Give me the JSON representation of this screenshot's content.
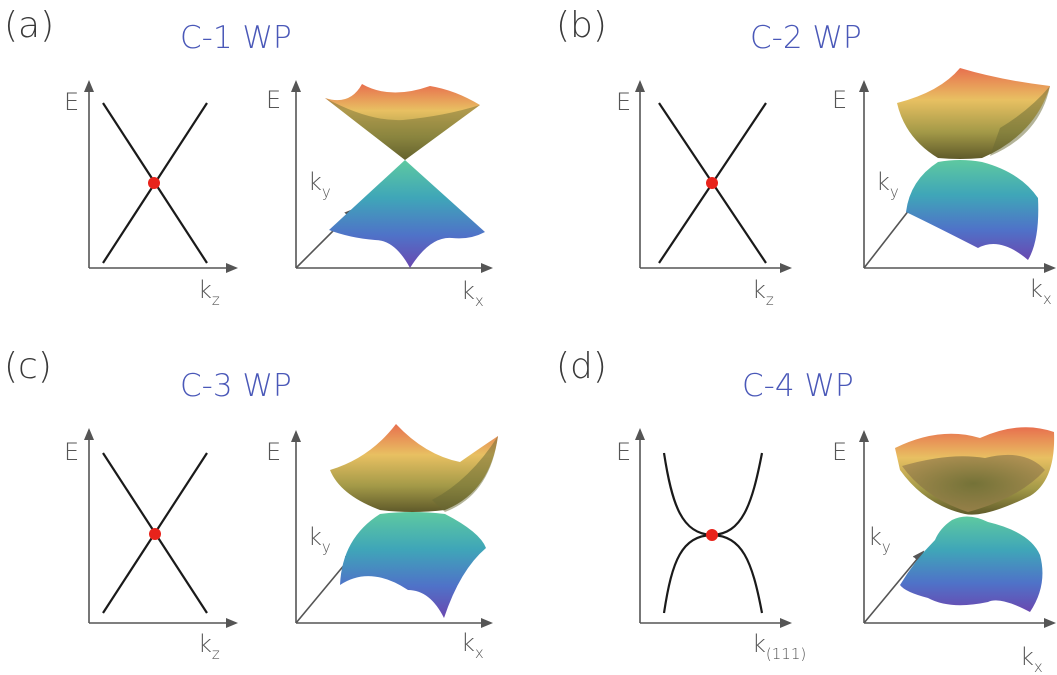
{
  "panels": [
    {
      "tag": "(a)",
      "title": "C-1 WP",
      "plot2d": {
        "ylabel": "E",
        "xlabel": "k",
        "xlabel_sub": "z",
        "dispersion": "linear"
      },
      "plot3d": {
        "ylabel": "E",
        "ky_label": "k",
        "ky_sub": "y",
        "kx_label": "k",
        "kx_sub": "x"
      }
    },
    {
      "tag": "(b)",
      "title": "C-2 WP",
      "plot2d": {
        "ylabel": "E",
        "xlabel": "k",
        "xlabel_sub": "z",
        "dispersion": "linear"
      },
      "plot3d": {
        "ylabel": "E",
        "ky_label": "k",
        "ky_sub": "y",
        "kx_label": "k",
        "kx_sub": "x"
      }
    },
    {
      "tag": "(c)",
      "title": "C-3 WP",
      "plot2d": {
        "ylabel": "E",
        "xlabel": "k",
        "xlabel_sub": "z",
        "dispersion": "linear"
      },
      "plot3d": {
        "ylabel": "E",
        "ky_label": "k",
        "ky_sub": "y",
        "kx_label": "k",
        "kx_sub": "x"
      }
    },
    {
      "tag": "(d)",
      "title": "C-4 WP",
      "plot2d": {
        "ylabel": "E",
        "xlabel": "k",
        "xlabel_sub": "(111)",
        "dispersion": "cubic"
      },
      "plot3d": {
        "ylabel": "E",
        "ky_label": "k",
        "ky_sub": "y",
        "kx_label": "k",
        "kx_sub": "x"
      }
    }
  ],
  "colors": {
    "title": "#4a58b8",
    "axis": "#555555",
    "band": "#1a1a1a",
    "weyl_point": "#e8231b",
    "surface_upper_rim": "#e07a4a",
    "surface_upper_mid": "#d9c85a",
    "surface_lower_mid": "#4cbfb0",
    "surface_lower_rim": "#6a4fb0"
  }
}
